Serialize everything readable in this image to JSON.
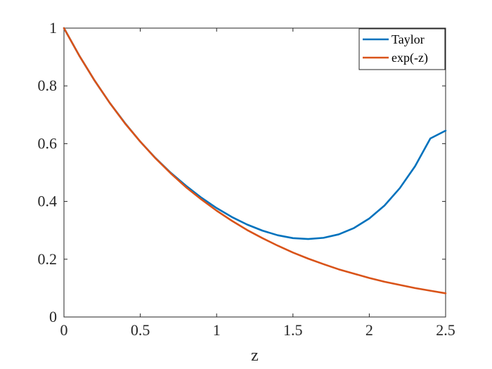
{
  "chart_data": {
    "type": "line",
    "title": "",
    "xlabel": "z",
    "ylabel": "",
    "xlim": [
      0,
      2.5
    ],
    "ylim": [
      0,
      1
    ],
    "grid": false,
    "legend_position": "top-right",
    "x_ticks": [
      0,
      0.5,
      1,
      1.5,
      2,
      2.5
    ],
    "x_tick_labels": [
      "0",
      "0.5",
      "1",
      "1.5",
      "2",
      "2.5"
    ],
    "y_ticks": [
      0,
      0.2,
      0.4,
      0.6,
      0.8,
      1
    ],
    "y_tick_labels": [
      "0",
      "0.2",
      "0.4",
      "0.6",
      "0.8",
      "1"
    ],
    "series": [
      {
        "name": "Taylor",
        "color": "#0072BD",
        "x": [
          0,
          0.1,
          0.2,
          0.3,
          0.4,
          0.5,
          0.6,
          0.7,
          0.8,
          0.9,
          1.0,
          1.1,
          1.2,
          1.3,
          1.4,
          1.5,
          1.6,
          1.7,
          1.8,
          1.9,
          2.0,
          2.1,
          2.2,
          2.3,
          2.4,
          2.5
        ],
        "y": [
          1.0,
          0.905,
          0.819,
          0.741,
          0.671,
          0.607,
          0.55,
          0.499,
          0.454,
          0.413,
          0.377,
          0.346,
          0.32,
          0.299,
          0.283,
          0.273,
          0.27,
          0.274,
          0.286,
          0.308,
          0.341,
          0.386,
          0.446,
          0.522,
          0.618,
          0.645
        ]
      },
      {
        "name": "exp(-z)",
        "color": "#D95319",
        "x": [
          0,
          0.1,
          0.2,
          0.3,
          0.4,
          0.5,
          0.6,
          0.7,
          0.8,
          0.9,
          1.0,
          1.1,
          1.2,
          1.3,
          1.4,
          1.5,
          1.6,
          1.7,
          1.8,
          1.9,
          2.0,
          2.1,
          2.2,
          2.3,
          2.4,
          2.5
        ],
        "y": [
          1.0,
          0.905,
          0.819,
          0.741,
          0.67,
          0.607,
          0.549,
          0.497,
          0.449,
          0.407,
          0.368,
          0.333,
          0.301,
          0.273,
          0.247,
          0.223,
          0.202,
          0.183,
          0.165,
          0.15,
          0.135,
          0.122,
          0.111,
          0.1,
          0.091,
          0.082
        ]
      }
    ]
  }
}
